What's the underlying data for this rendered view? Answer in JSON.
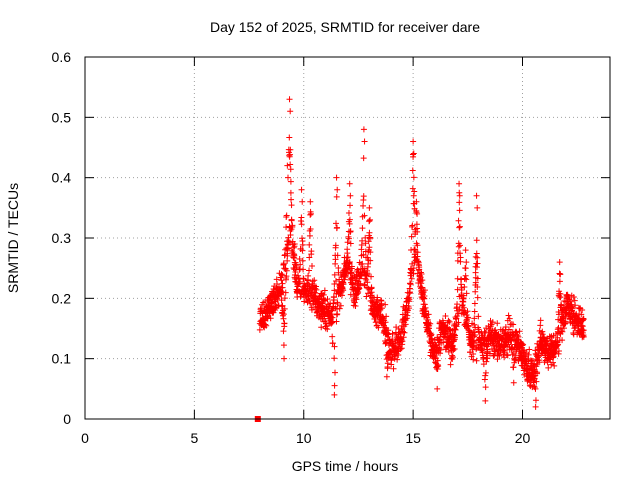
{
  "chart_data": {
    "type": "scatter",
    "title": "Day 152 of 2025, SRMTID for receiver dare",
    "xlabel": "GPS time / hours",
    "ylabel": "SRMTID / TECUs",
    "xlim": [
      0,
      24
    ],
    "ylim": [
      0,
      0.6
    ],
    "xticks": [
      0,
      5,
      10,
      15,
      20
    ],
    "xtick_labels": [
      "0",
      "5",
      "10",
      "15",
      "20"
    ],
    "yticks": [
      0,
      0.1,
      0.2,
      0.3,
      0.4,
      0.5,
      0.6
    ],
    "ytick_labels": [
      "0",
      "0.1",
      "0.2",
      "0.3",
      "0.4",
      "0.5",
      "0.6"
    ],
    "grid": true,
    "marker": "+",
    "color": "#ff0000",
    "series": [
      {
        "name": "SRMTID",
        "x_start": 8.0,
        "x_end": 22.8,
        "step_hours": 0.0167,
        "envelope": [
          [
            8.0,
            0.16
          ],
          [
            8.5,
            0.19
          ],
          [
            9.0,
            0.22
          ],
          [
            9.4,
            0.32
          ],
          [
            9.7,
            0.22
          ],
          [
            10.2,
            0.21
          ],
          [
            10.7,
            0.19
          ],
          [
            11.2,
            0.17
          ],
          [
            11.7,
            0.22
          ],
          [
            12.0,
            0.26
          ],
          [
            12.3,
            0.21
          ],
          [
            12.7,
            0.25
          ],
          [
            13.2,
            0.18
          ],
          [
            13.6,
            0.17
          ],
          [
            14.0,
            0.11
          ],
          [
            14.4,
            0.13
          ],
          [
            14.8,
            0.2
          ],
          [
            15.1,
            0.28
          ],
          [
            15.5,
            0.19
          ],
          [
            15.9,
            0.11
          ],
          [
            16.3,
            0.15
          ],
          [
            16.8,
            0.12
          ],
          [
            17.2,
            0.2
          ],
          [
            17.6,
            0.13
          ],
          [
            18.0,
            0.12
          ],
          [
            18.5,
            0.14
          ],
          [
            19.0,
            0.12
          ],
          [
            19.5,
            0.14
          ],
          [
            20.0,
            0.11
          ],
          [
            20.4,
            0.07
          ],
          [
            20.8,
            0.13
          ],
          [
            21.2,
            0.11
          ],
          [
            21.6,
            0.12
          ],
          [
            22.0,
            0.19
          ],
          [
            22.4,
            0.17
          ],
          [
            22.8,
            0.15
          ]
        ],
        "spikes": [
          [
            9.35,
            0.53
          ],
          [
            9.25,
            0.42
          ],
          [
            9.9,
            0.38
          ],
          [
            10.3,
            0.36
          ],
          [
            11.5,
            0.4
          ],
          [
            12.1,
            0.39
          ],
          [
            12.75,
            0.48
          ],
          [
            13.0,
            0.35
          ],
          [
            15.0,
            0.46
          ],
          [
            15.15,
            0.36
          ],
          [
            17.1,
            0.39
          ],
          [
            17.4,
            0.28
          ],
          [
            17.9,
            0.37
          ],
          [
            21.7,
            0.26
          ]
        ],
        "dips": [
          [
            9.1,
            0.1
          ],
          [
            11.4,
            0.04
          ],
          [
            13.8,
            0.07
          ],
          [
            16.1,
            0.05
          ],
          [
            18.3,
            0.03
          ],
          [
            19.6,
            0.06
          ],
          [
            20.6,
            0.02
          ]
        ],
        "isolated_points": [
          {
            "x": 7.9,
            "y": 0.0
          }
        ]
      }
    ]
  }
}
